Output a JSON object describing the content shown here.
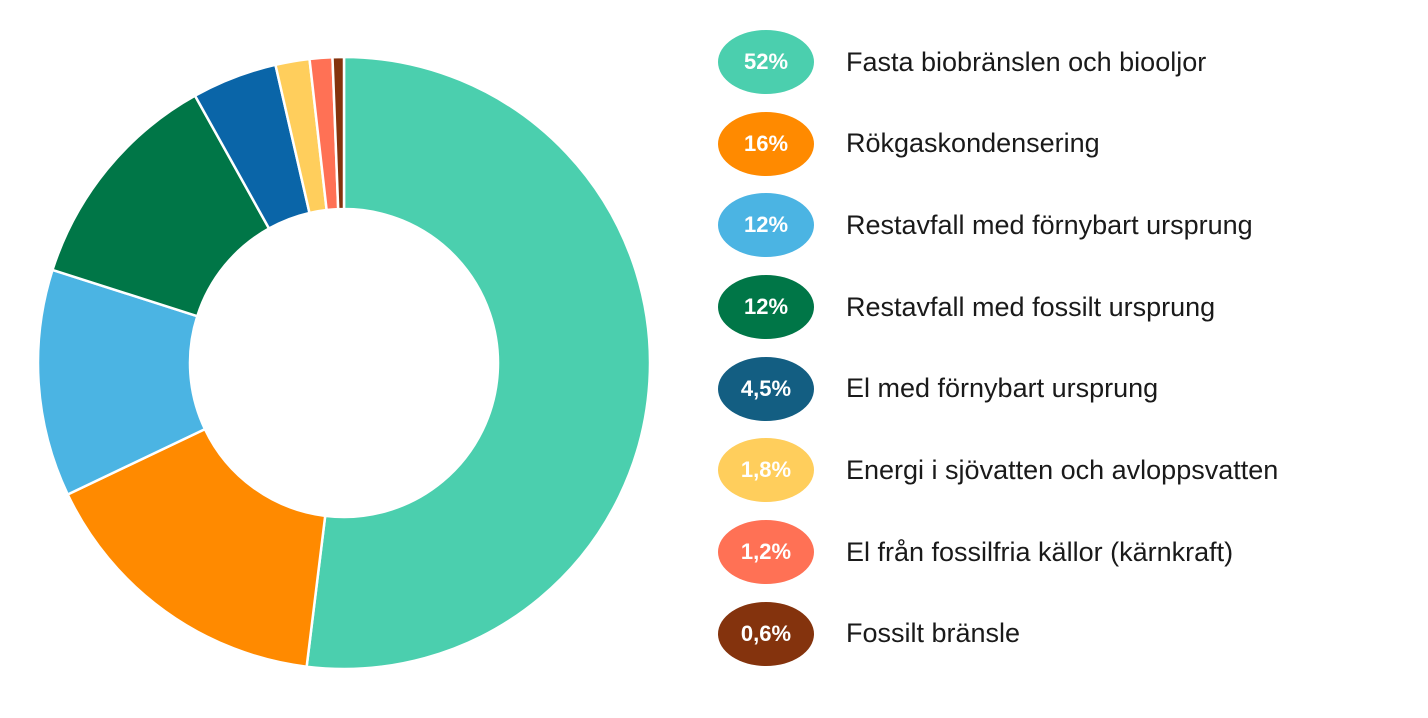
{
  "chart_data": {
    "type": "pie",
    "donut": true,
    "legend_position": "right",
    "title": "",
    "categories": [
      "Fasta biobränslen och biooljor",
      "Rökgaskondensering",
      "Restavfall med förnybart ursprung",
      "Restavfall med fossilt ursprung",
      "El med förnybart ursprung",
      "Energi i sjövatten och avloppsvatten",
      "El från fossilfria källor (kärnkraft)",
      "Fossilt bränsle"
    ],
    "values": [
      52,
      16,
      12,
      12,
      4.5,
      1.8,
      1.2,
      0.6
    ],
    "value_labels": [
      "52%",
      "16%",
      "12%",
      "12%",
      "4,5%",
      "1,8%",
      "1,2%",
      "0,6%"
    ],
    "colors": [
      "#4BCFAE",
      "#FF8A00",
      "#4BB4E3",
      "#007647",
      "#0A65A8",
      "#FFCE5C",
      "#FF7155",
      "#84330D"
    ],
    "pill_colors": [
      "#4BCFAE",
      "#FF8A00",
      "#4BB4E3",
      "#007647",
      "#135E82",
      "#FFCE5C",
      "#FF7155",
      "#84330D"
    ]
  }
}
